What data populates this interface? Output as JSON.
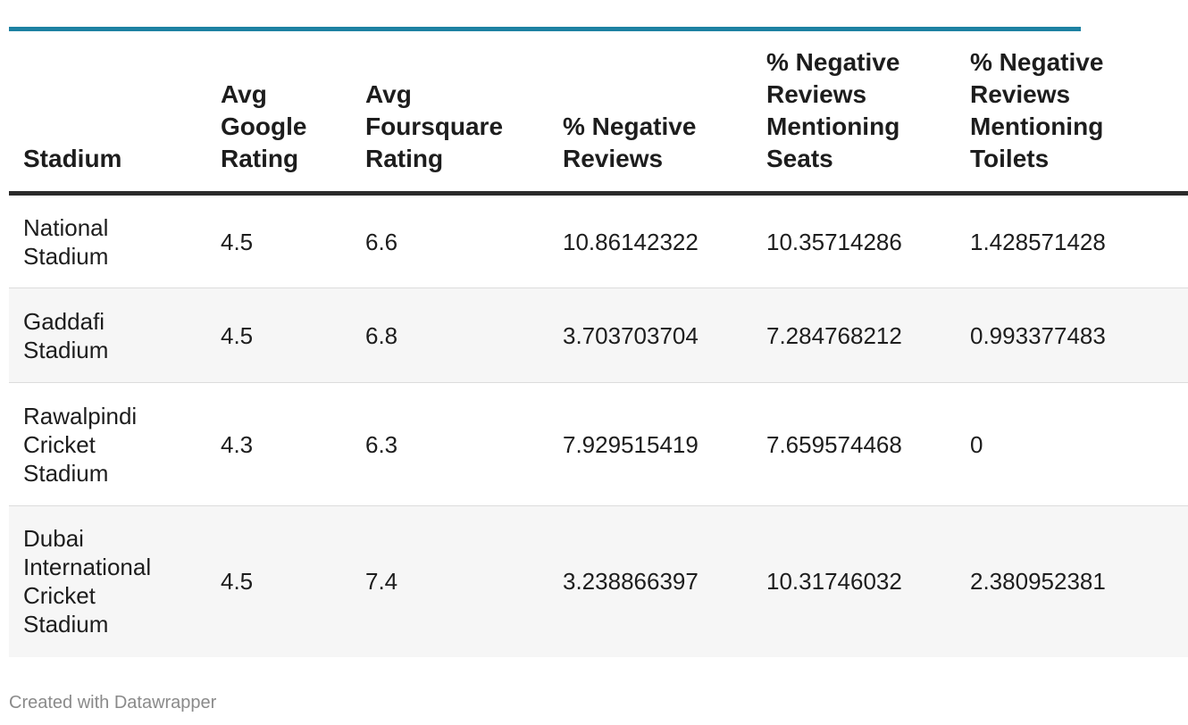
{
  "chart_data": {
    "type": "table",
    "columns": [
      [
        "Stadium"
      ],
      [
        "Avg",
        "Google",
        "Rating"
      ],
      [
        "Avg",
        "Foursquare",
        "Rating"
      ],
      [
        "% Negative",
        "Reviews"
      ],
      [
        "% Negative",
        "Reviews",
        "Mentioning",
        "Seats"
      ],
      [
        "% Negative",
        "Reviews",
        "Mentioning",
        "Toilets"
      ]
    ],
    "rows": [
      {
        "stadium": [
          "National",
          "Stadium"
        ],
        "values": [
          "4.5",
          "6.6",
          "10.86142322",
          "10.35714286",
          "1.428571428"
        ]
      },
      {
        "stadium": [
          "Gaddafi",
          "Stadium"
        ],
        "values": [
          "4.5",
          "6.8",
          "3.703703704",
          "7.284768212",
          "0.993377483"
        ]
      },
      {
        "stadium": [
          "Rawalpindi",
          "Cricket",
          "Stadium"
        ],
        "values": [
          "4.3",
          "6.3",
          "7.929515419",
          "7.659574468",
          "0"
        ]
      },
      {
        "stadium": [
          "Dubai",
          "International",
          "Cricket",
          "Stadium"
        ],
        "values": [
          "4.5",
          "7.4",
          "3.238866397",
          "10.31746032",
          "2.380952381"
        ]
      }
    ]
  },
  "footer": "Created with Datawrapper",
  "colors": {
    "accent_rule": "#1d81a2",
    "header_rule": "#2b2b2b",
    "row_shade": "#f6f6f6",
    "footer_text": "#8a8a8a"
  }
}
